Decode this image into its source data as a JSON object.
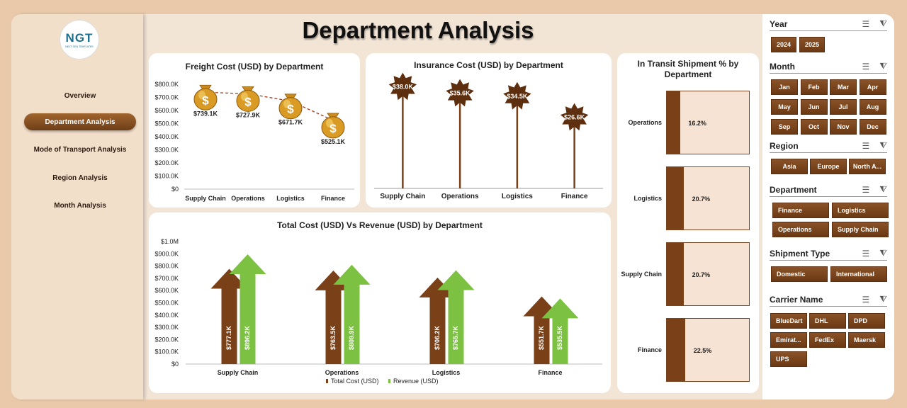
{
  "app": {
    "title": "Department Analysis",
    "logo_text": "NGT",
    "logo_sub": "NEXT GEN TEMPLATES"
  },
  "nav": {
    "items": [
      {
        "label": "Overview",
        "active": false
      },
      {
        "label": "Department Analysis",
        "active": true
      },
      {
        "label": "Mode of Transport Analysis",
        "active": false
      },
      {
        "label": "Region Analysis",
        "active": false
      },
      {
        "label": "Month Analysis",
        "active": false
      }
    ]
  },
  "colors": {
    "brown": "#7a4119",
    "green": "#7cc142",
    "page_bg": "#f3e5d6",
    "outer_bg": "#e9c9a9"
  },
  "chart_data": [
    {
      "type": "line",
      "title": "Freight Cost (USD) by Department",
      "categories": [
        "Supply Chain",
        "Operations",
        "Logistics",
        "Finance"
      ],
      "values": [
        739.1,
        727.9,
        671.7,
        525.1
      ],
      "data_labels": [
        "$739.1K",
        "$727.9K",
        "$671.7K",
        "$525.1K"
      ],
      "ylim": [
        0,
        800
      ],
      "yticks": [
        "$0",
        "$100.0K",
        "$200.0K",
        "$300.0K",
        "$400.0K",
        "$500.0K",
        "$600.0K",
        "$700.0K",
        "$800.0K"
      ],
      "marker_icon": "money-bag-icon"
    },
    {
      "type": "bar",
      "title": "Insurance Cost (USD) by Department",
      "categories": [
        "Supply Chain",
        "Operations",
        "Logistics",
        "Finance"
      ],
      "values": [
        38.0,
        35.6,
        34.5,
        26.6
      ],
      "data_labels": [
        "$38.0K",
        "$35.6K",
        "$34.5K",
        "$26.6K"
      ],
      "ylim": [
        0,
        40
      ]
    },
    {
      "type": "bar",
      "title": "In Transit Shipment % by Department",
      "categories": [
        "Operations",
        "Logistics",
        "Supply Chain",
        "Finance"
      ],
      "values": [
        16.2,
        20.7,
        20.7,
        22.5
      ],
      "data_labels": [
        "16.2%",
        "20.7%",
        "20.7%",
        "22.5%"
      ]
    },
    {
      "type": "bar",
      "title": "Total Cost (USD) Vs Revenue (USD) by Department",
      "categories": [
        "Supply Chain",
        "Operations",
        "Logistics",
        "Finance"
      ],
      "series": [
        {
          "name": "Total Cost (USD)",
          "values": [
            777.1,
            763.5,
            706.2,
            551.7
          ],
          "labels": [
            "$777.1K",
            "$763.5K",
            "$706.2K",
            "$551.7K"
          ]
        },
        {
          "name": "Revenue (USD)",
          "values": [
            896.2,
            809.9,
            765.7,
            535.5
          ],
          "labels": [
            "$896.2K",
            "$809.9K",
            "$765.7K",
            "$535.5K"
          ]
        }
      ],
      "ylim": [
        0,
        1000
      ],
      "yticks": [
        "$0",
        "$100.0K",
        "$200.0K",
        "$300.0K",
        "$400.0K",
        "$500.0K",
        "$600.0K",
        "$700.0K",
        "$800.0K",
        "$900.0K",
        "$1.0M"
      ],
      "legend": "bottom"
    }
  ],
  "slicers": {
    "year": {
      "title": "Year",
      "options": [
        "2024",
        "2025"
      ]
    },
    "month": {
      "title": "Month",
      "options": [
        "Jan",
        "Feb",
        "Mar",
        "Apr",
        "May",
        "Jun",
        "Jul",
        "Aug",
        "Sep",
        "Oct",
        "Nov",
        "Dec"
      ]
    },
    "region": {
      "title": "Region",
      "options": [
        "Asia",
        "Europe",
        "North A..."
      ]
    },
    "department": {
      "title": "Department",
      "options": [
        "Finance",
        "Logistics",
        "Operations",
        "Supply Chain"
      ]
    },
    "shipment": {
      "title": "Shipment Type",
      "options": [
        "Domestic",
        "International"
      ]
    },
    "carrier": {
      "title": "Carrier Name",
      "options": [
        "BlueDart",
        "DHL",
        "DPD",
        "Emirat...",
        "FedEx",
        "Maersk",
        "UPS"
      ]
    }
  }
}
